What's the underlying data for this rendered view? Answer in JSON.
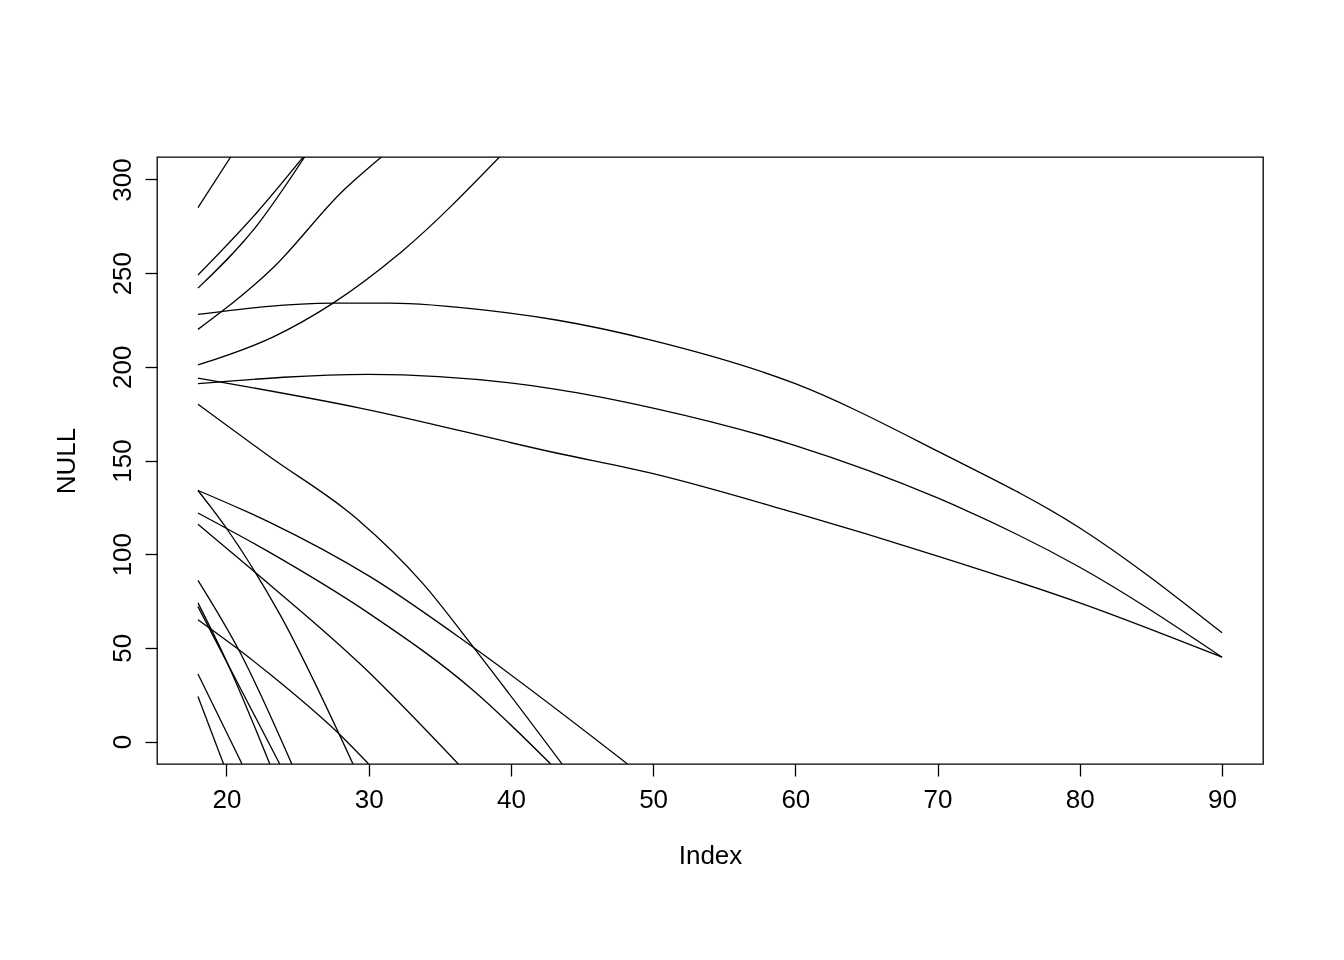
{
  "chart_data": {
    "type": "line",
    "xlabel": "Index",
    "ylabel": "NULL",
    "xlim": [
      15.12,
      92.88
    ],
    "ylim": [
      -12,
      312
    ],
    "xticks": [
      20,
      30,
      40,
      50,
      60,
      70,
      80,
      90
    ],
    "yticks": [
      0,
      50,
      100,
      150,
      200,
      250,
      300
    ],
    "grid": false,
    "legend": false,
    "marker": "none",
    "line_style": "solid",
    "series": [
      {
        "color": "#000000",
        "x": [
          18,
          27.5,
          31.5,
          38.5,
          43.2,
          50,
          60,
          70,
          80,
          90
        ],
        "values": [
          228,
          234,
          234,
          230,
          225,
          214,
          191,
          155,
          114,
          58
        ]
      },
      {
        "color": "#000000",
        "x": [
          18,
          30,
          43.2,
          50,
          60,
          70,
          80,
          90
        ],
        "values": [
          191,
          196,
          188,
          178,
          158,
          130,
          93,
          45
        ]
      },
      {
        "color": "#000000",
        "x": [
          18,
          29.4,
          43.2,
          50,
          60,
          70,
          80,
          90
        ],
        "values": [
          194,
          178,
          154,
          143,
          122,
          99,
          74,
          45
        ]
      },
      {
        "color": "#000000",
        "x": [
          18,
          23.3,
          27.5,
          32.4,
          39.2
        ],
        "values": [
          201,
          216,
          234,
          262,
          312
        ]
      },
      {
        "color": "#000000",
        "x": [
          18,
          23.3,
          28.2,
          30.9
        ],
        "values": [
          220,
          253,
          294,
          312
        ]
      },
      {
        "color": "#000000",
        "x": [
          18,
          22.1,
          25.5
        ],
        "values": [
          242,
          275,
          312
        ]
      },
      {
        "color": "#000000",
        "x": [
          18,
          22.1,
          25.4
        ],
        "values": [
          249,
          282,
          312
        ]
      },
      {
        "color": "#000000",
        "x": [
          18,
          20.3
        ],
        "values": [
          285,
          312
        ]
      },
      {
        "color": "#000000",
        "x": [
          18,
          23.05,
          29.15,
          33.85,
          37.4,
          43.6
        ],
        "values": [
          180,
          152,
          119,
          84,
          50,
          -12
        ]
      },
      {
        "color": "#000000",
        "x": [
          18,
          23.05,
          30.1,
          37.4,
          48.2
        ],
        "values": [
          134,
          117,
          88,
          50,
          -12
        ]
      },
      {
        "color": "#000000",
        "x": [
          18,
          19.8,
          23.75,
          28.9
        ],
        "values": [
          134,
          116,
          68,
          -12
        ]
      },
      {
        "color": "#000000",
        "x": [
          18,
          22.8,
          30.1,
          37.4,
          42.8
        ],
        "values": [
          122,
          102,
          68,
          27,
          -12
        ]
      },
      {
        "color": "#000000",
        "x": [
          18,
          21.6,
          29.6,
          36.3
        ],
        "values": [
          116,
          93,
          40,
          -12
        ]
      },
      {
        "color": "#000000",
        "x": [
          18,
          20.7,
          23.05,
          28.2,
          30.0
        ],
        "values": [
          65,
          50,
          36,
          2,
          -12
        ]
      },
      {
        "color": "#000000",
        "x": [
          18,
          21.0,
          24.6
        ],
        "values": [
          86,
          47,
          -12
        ]
      },
      {
        "color": "#000000",
        "x": [
          18,
          20.0,
          23.05
        ],
        "values": [
          74,
          43,
          -12
        ]
      },
      {
        "color": "#000000",
        "x": [
          18,
          23.75
        ],
        "values": [
          72,
          -12
        ]
      },
      {
        "color": "#000000",
        "x": [
          18,
          21.1
        ],
        "values": [
          36,
          -12
        ]
      },
      {
        "color": "#000000",
        "x": [
          18,
          19.8
        ],
        "values": [
          24,
          -12
        ]
      }
    ]
  }
}
